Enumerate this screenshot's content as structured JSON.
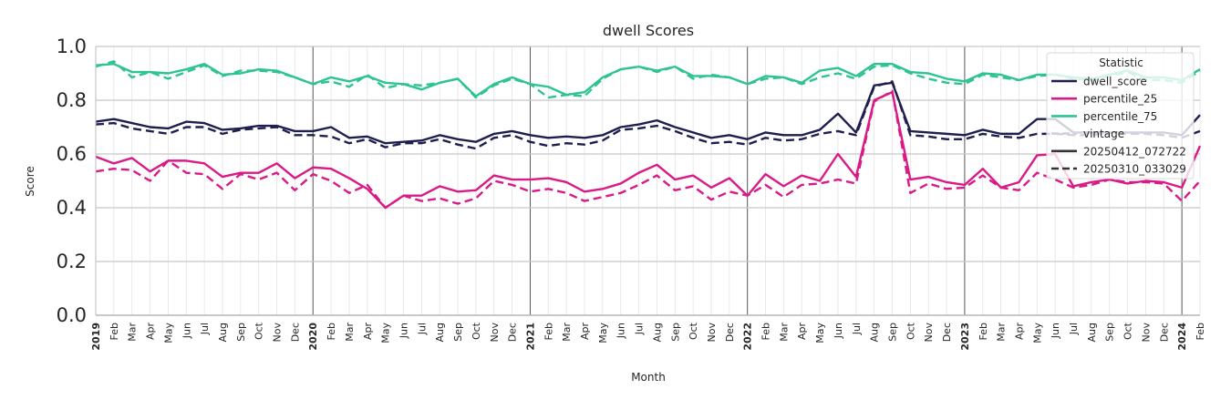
{
  "chart_data": {
    "type": "line",
    "title": "dwell Scores",
    "xlabel": "Month",
    "ylabel": "Score",
    "ylim": [
      0,
      1
    ],
    "yticks": [
      "0.0",
      "0.2",
      "0.4",
      "0.6",
      "0.8",
      "1.0"
    ],
    "x_start": "2019-01",
    "x_end": "2024-02",
    "x": [
      "2019",
      "Feb",
      "Mar",
      "Apr",
      "May",
      "Jun",
      "Jul",
      "Aug",
      "Sep",
      "Oct",
      "Nov",
      "Dec",
      "2020",
      "Feb",
      "Mar",
      "Apr",
      "May",
      "Jun",
      "Jul",
      "Aug",
      "Sep",
      "Oct",
      "Nov",
      "Dec",
      "2021",
      "Feb",
      "Mar",
      "Apr",
      "May",
      "Jun",
      "Jul",
      "Aug",
      "Sep",
      "Oct",
      "Nov",
      "Dec",
      "2022",
      "Feb",
      "Mar",
      "Apr",
      "May",
      "Jun",
      "Jul",
      "Aug",
      "Sep",
      "Oct",
      "Nov",
      "Dec",
      "2023",
      "Feb",
      "Mar",
      "Apr",
      "May",
      "Jun",
      "Jul",
      "Aug",
      "Sep",
      "Oct",
      "Nov",
      "Dec",
      "2024",
      "Feb"
    ],
    "legend": {
      "title": "Statistic",
      "entries": [
        {
          "label": "dwell_score",
          "color": "#1f1f4f",
          "style": "solid"
        },
        {
          "label": "percentile_25",
          "color": "#d91a87",
          "style": "solid"
        },
        {
          "label": "percentile_75",
          "color": "#2ec48f",
          "style": "solid"
        },
        {
          "label": "vintage",
          "color": "#cfcfdf",
          "style": "dashed"
        },
        {
          "label": "20250412_072722",
          "color": "#333333",
          "style": "solid"
        },
        {
          "label": "20250310_033029",
          "color": "#333333",
          "style": "dashed"
        }
      ],
      "placement": "top-right"
    },
    "grid": true,
    "series": [
      {
        "name": "dwell_score",
        "vintage": "20250412_072722",
        "color": "#1f1f4f",
        "dash": false,
        "values": [
          0.72,
          0.73,
          0.715,
          0.7,
          0.695,
          0.72,
          0.715,
          0.69,
          0.695,
          0.705,
          0.705,
          0.685,
          0.685,
          0.7,
          0.66,
          0.665,
          0.64,
          0.645,
          0.65,
          0.67,
          0.655,
          0.645,
          0.675,
          0.685,
          0.67,
          0.66,
          0.665,
          0.66,
          0.67,
          0.7,
          0.71,
          0.725,
          0.7,
          0.68,
          0.66,
          0.67,
          0.655,
          0.68,
          0.67,
          0.67,
          0.69,
          0.75,
          0.68,
          0.855,
          0.865,
          0.685,
          0.68,
          0.675,
          0.67,
          0.69,
          0.675,
          0.675,
          0.73,
          0.73,
          0.68,
          0.68,
          0.68,
          0.68,
          0.68,
          0.68,
          0.67,
          0.745
        ]
      },
      {
        "name": "dwell_score",
        "vintage": "20250310_033029",
        "color": "#1f1f4f",
        "dash": true,
        "values": [
          0.71,
          0.715,
          0.695,
          0.685,
          0.675,
          0.7,
          0.7,
          0.675,
          0.69,
          0.695,
          0.7,
          0.67,
          0.67,
          0.665,
          0.64,
          0.655,
          0.625,
          0.64,
          0.64,
          0.655,
          0.635,
          0.62,
          0.66,
          0.67,
          0.645,
          0.63,
          0.64,
          0.635,
          0.65,
          0.69,
          0.695,
          0.705,
          0.685,
          0.66,
          0.64,
          0.645,
          0.635,
          0.66,
          0.65,
          0.655,
          0.675,
          0.685,
          0.67,
          0.85,
          0.87,
          0.67,
          0.665,
          0.655,
          0.655,
          0.675,
          0.665,
          0.66,
          0.675,
          0.675,
          0.67,
          0.67,
          0.68,
          0.675,
          0.675,
          0.67,
          0.66,
          0.685
        ]
      },
      {
        "name": "percentile_25",
        "vintage": "20250412_072722",
        "color": "#d91a87",
        "dash": false,
        "values": [
          0.59,
          0.565,
          0.585,
          0.535,
          0.575,
          0.575,
          0.565,
          0.515,
          0.53,
          0.53,
          0.565,
          0.51,
          0.55,
          0.545,
          0.51,
          0.47,
          0.4,
          0.445,
          0.445,
          0.48,
          0.46,
          0.465,
          0.52,
          0.505,
          0.505,
          0.51,
          0.495,
          0.46,
          0.47,
          0.49,
          0.53,
          0.56,
          0.505,
          0.52,
          0.475,
          0.51,
          0.445,
          0.525,
          0.48,
          0.52,
          0.5,
          0.6,
          0.515,
          0.8,
          0.83,
          0.505,
          0.515,
          0.495,
          0.485,
          0.545,
          0.475,
          0.495,
          0.595,
          0.6,
          0.48,
          0.495,
          0.505,
          0.49,
          0.5,
          0.495,
          0.475,
          0.63
        ]
      },
      {
        "name": "percentile_25",
        "vintage": "20250310_033029",
        "color": "#d91a87",
        "dash": true,
        "values": [
          0.535,
          0.545,
          0.54,
          0.5,
          0.575,
          0.53,
          0.525,
          0.47,
          0.525,
          0.505,
          0.53,
          0.465,
          0.525,
          0.5,
          0.455,
          0.485,
          0.4,
          0.445,
          0.425,
          0.435,
          0.415,
          0.435,
          0.5,
          0.485,
          0.46,
          0.47,
          0.455,
          0.425,
          0.44,
          0.455,
          0.485,
          0.52,
          0.465,
          0.48,
          0.43,
          0.46,
          0.445,
          0.485,
          0.44,
          0.485,
          0.49,
          0.505,
          0.49,
          0.795,
          0.835,
          0.455,
          0.49,
          0.47,
          0.475,
          0.52,
          0.475,
          0.465,
          0.53,
          0.505,
          0.475,
          0.485,
          0.505,
          0.495,
          0.495,
          0.49,
          0.425,
          0.5
        ]
      },
      {
        "name": "percentile_75",
        "vintage": "20250412_072722",
        "color": "#2ec48f",
        "dash": false,
        "values": [
          0.93,
          0.935,
          0.905,
          0.905,
          0.9,
          0.915,
          0.935,
          0.895,
          0.9,
          0.915,
          0.91,
          0.885,
          0.86,
          0.885,
          0.87,
          0.89,
          0.865,
          0.86,
          0.84,
          0.865,
          0.88,
          0.815,
          0.86,
          0.885,
          0.86,
          0.85,
          0.82,
          0.83,
          0.885,
          0.915,
          0.925,
          0.91,
          0.925,
          0.89,
          0.89,
          0.885,
          0.86,
          0.89,
          0.885,
          0.865,
          0.91,
          0.92,
          0.89,
          0.935,
          0.935,
          0.905,
          0.9,
          0.88,
          0.87,
          0.9,
          0.895,
          0.875,
          0.895,
          0.895,
          0.885,
          0.88,
          0.895,
          0.91,
          0.885,
          0.885,
          0.875,
          0.915
        ]
      },
      {
        "name": "percentile_75",
        "vintage": "20250310_033029",
        "color": "#2ec48f",
        "dash": true,
        "values": [
          0.925,
          0.945,
          0.885,
          0.905,
          0.88,
          0.905,
          0.93,
          0.89,
          0.91,
          0.91,
          0.905,
          0.885,
          0.86,
          0.87,
          0.85,
          0.895,
          0.845,
          0.86,
          0.855,
          0.865,
          0.88,
          0.81,
          0.855,
          0.88,
          0.86,
          0.81,
          0.82,
          0.815,
          0.88,
          0.915,
          0.925,
          0.905,
          0.925,
          0.88,
          0.895,
          0.885,
          0.86,
          0.88,
          0.885,
          0.86,
          0.885,
          0.9,
          0.88,
          0.925,
          0.93,
          0.9,
          0.88,
          0.865,
          0.86,
          0.895,
          0.885,
          0.875,
          0.89,
          0.895,
          0.88,
          0.875,
          0.89,
          0.905,
          0.875,
          0.875,
          0.865,
          0.91
        ]
      }
    ]
  }
}
